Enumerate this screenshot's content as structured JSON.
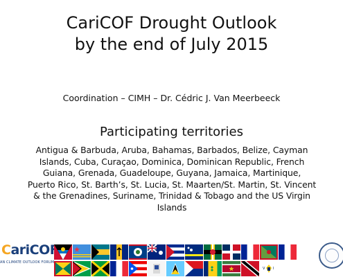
{
  "slide": {
    "title_line1": "CariCOF Drought Outlook",
    "title_line2": "by the end of July 2015",
    "coordination": "Coordination – CIMH – Dr. Cédric J. Van Meerbeeck",
    "participating_heading": "Participating territories",
    "territories_lines": [
      "Antigua & Barbuda, Aruba, Bahamas, Barbados, Belize, Cayman",
      "Islands, Cuba, Curaçao, Dominica, Dominican Republic, French",
      "Guiana, Grenada, Guadeloupe, Guyana, Jamaica, Martinique,",
      "Puerto Rico, St. Barth’s, St. Lucia, St. Maarten/St. Martin, St. Vincent",
      "& the Grenadines, Suriname, Trinidad & Tobago and the US Virgin",
      "Islands"
    ]
  },
  "logo": {
    "text_prefix": "ari",
    "text_letter_c": "C",
    "text_suffix": "COF",
    "subtitle": "AN CLIMATE OUTLOOK FORUM"
  },
  "colors": {
    "logo_blue": "#1a3f7a",
    "logo_orange": "#f5a623"
  }
}
